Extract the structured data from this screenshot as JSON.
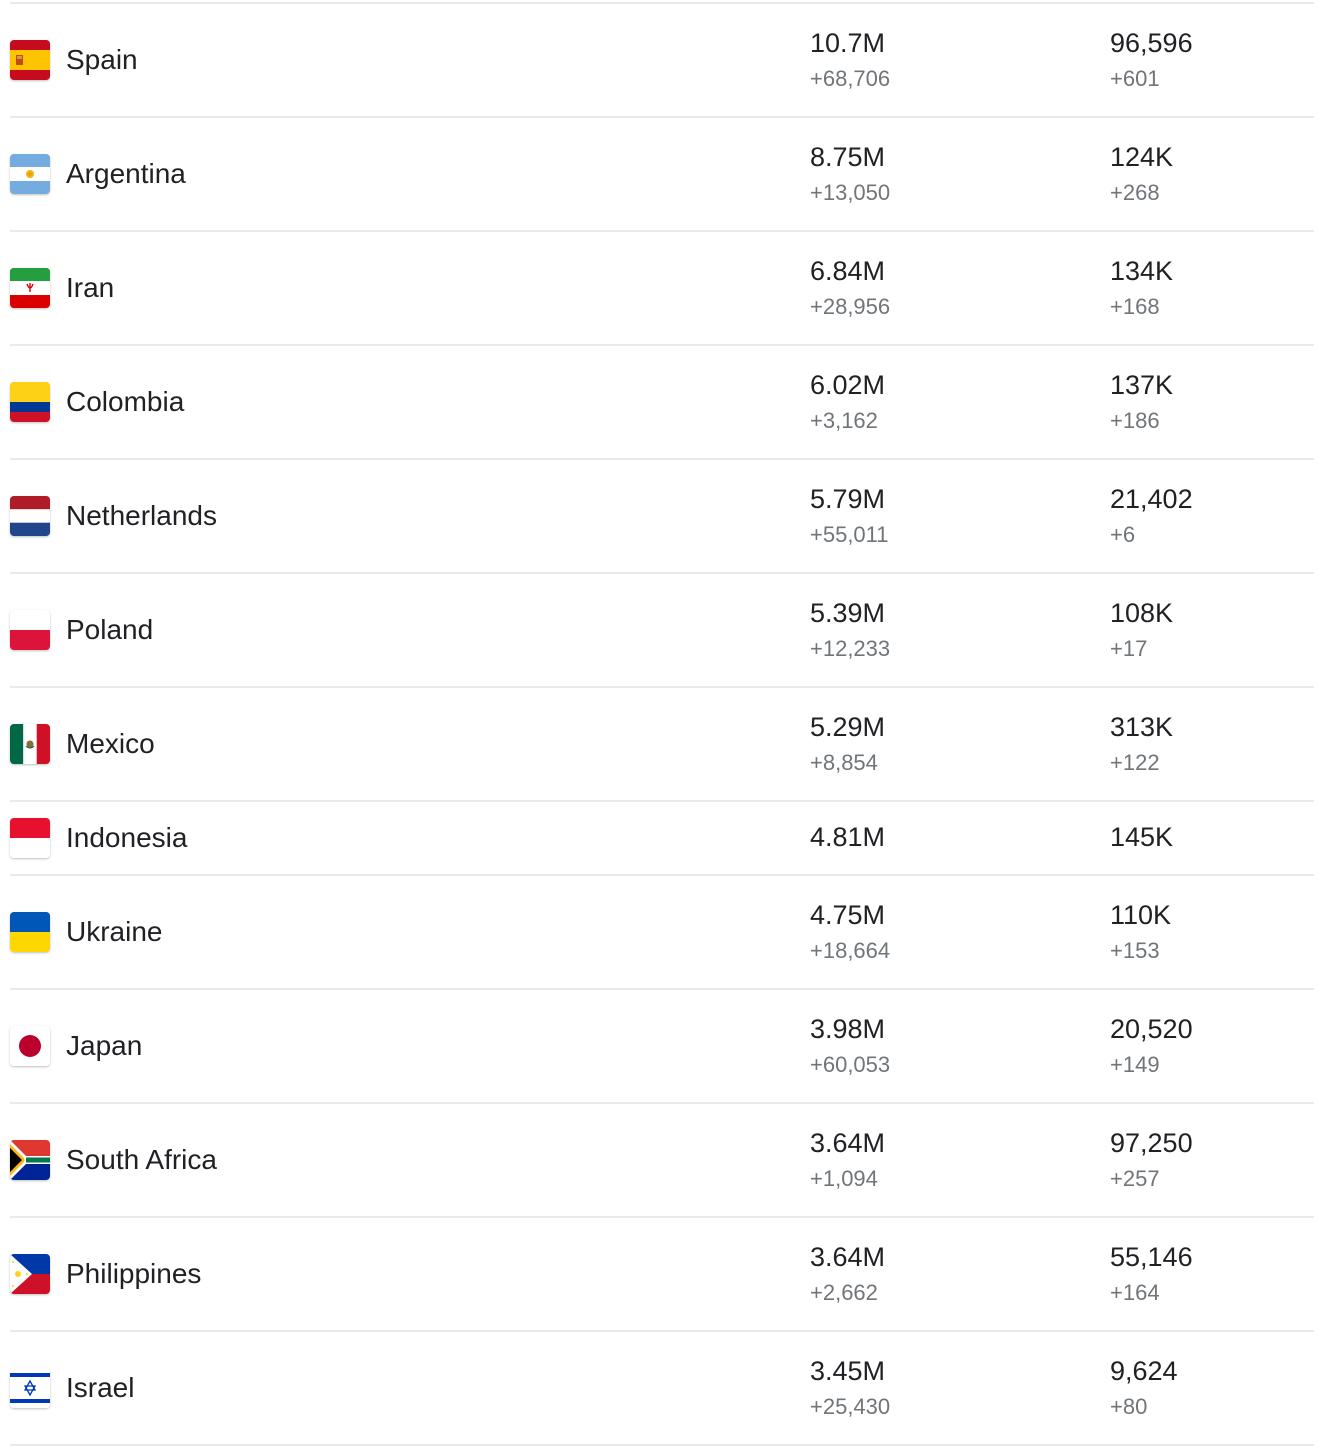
{
  "rows": [
    {
      "country": "Spain",
      "flag_icon": "spain-flag-icon",
      "cases": "10.7M",
      "cases_new": "+68,706",
      "deaths": "96,596",
      "deaths_new": "+601"
    },
    {
      "country": "Argentina",
      "flag_icon": "argentina-flag-icon",
      "cases": "8.75M",
      "cases_new": "+13,050",
      "deaths": "124K",
      "deaths_new": "+268"
    },
    {
      "country": "Iran",
      "flag_icon": "iran-flag-icon",
      "cases": "6.84M",
      "cases_new": "+28,956",
      "deaths": "134K",
      "deaths_new": "+168"
    },
    {
      "country": "Colombia",
      "flag_icon": "colombia-flag-icon",
      "cases": "6.02M",
      "cases_new": "+3,162",
      "deaths": "137K",
      "deaths_new": "+186"
    },
    {
      "country": "Netherlands",
      "flag_icon": "netherlands-flag-icon",
      "cases": "5.79M",
      "cases_new": "+55,011",
      "deaths": "21,402",
      "deaths_new": "+6"
    },
    {
      "country": "Poland",
      "flag_icon": "poland-flag-icon",
      "cases": "5.39M",
      "cases_new": "+12,233",
      "deaths": "108K",
      "deaths_new": "+17"
    },
    {
      "country": "Mexico",
      "flag_icon": "mexico-flag-icon",
      "cases": "5.29M",
      "cases_new": "+8,854",
      "deaths": "313K",
      "deaths_new": "+122"
    },
    {
      "country": "Indonesia",
      "flag_icon": "indonesia-flag-icon",
      "cases": "4.81M",
      "cases_new": null,
      "deaths": "145K",
      "deaths_new": null
    },
    {
      "country": "Ukraine",
      "flag_icon": "ukraine-flag-icon",
      "cases": "4.75M",
      "cases_new": "+18,664",
      "deaths": "110K",
      "deaths_new": "+153"
    },
    {
      "country": "Japan",
      "flag_icon": "japan-flag-icon",
      "cases": "3.98M",
      "cases_new": "+60,053",
      "deaths": "20,520",
      "deaths_new": "+149"
    },
    {
      "country": "South Africa",
      "flag_icon": "south-africa-flag-icon",
      "cases": "3.64M",
      "cases_new": "+1,094",
      "deaths": "97,250",
      "deaths_new": "+257"
    },
    {
      "country": "Philippines",
      "flag_icon": "philippines-flag-icon",
      "cases": "3.64M",
      "cases_new": "+2,662",
      "deaths": "55,146",
      "deaths_new": "+164"
    },
    {
      "country": "Israel",
      "flag_icon": "israel-flag-icon",
      "cases": "3.45M",
      "cases_new": "+25,430",
      "deaths": "9,624",
      "deaths_new": "+80"
    }
  ],
  "colors": {
    "primary_text": "#202124",
    "secondary_text": "#70757a",
    "divider": "#e8eaed"
  }
}
